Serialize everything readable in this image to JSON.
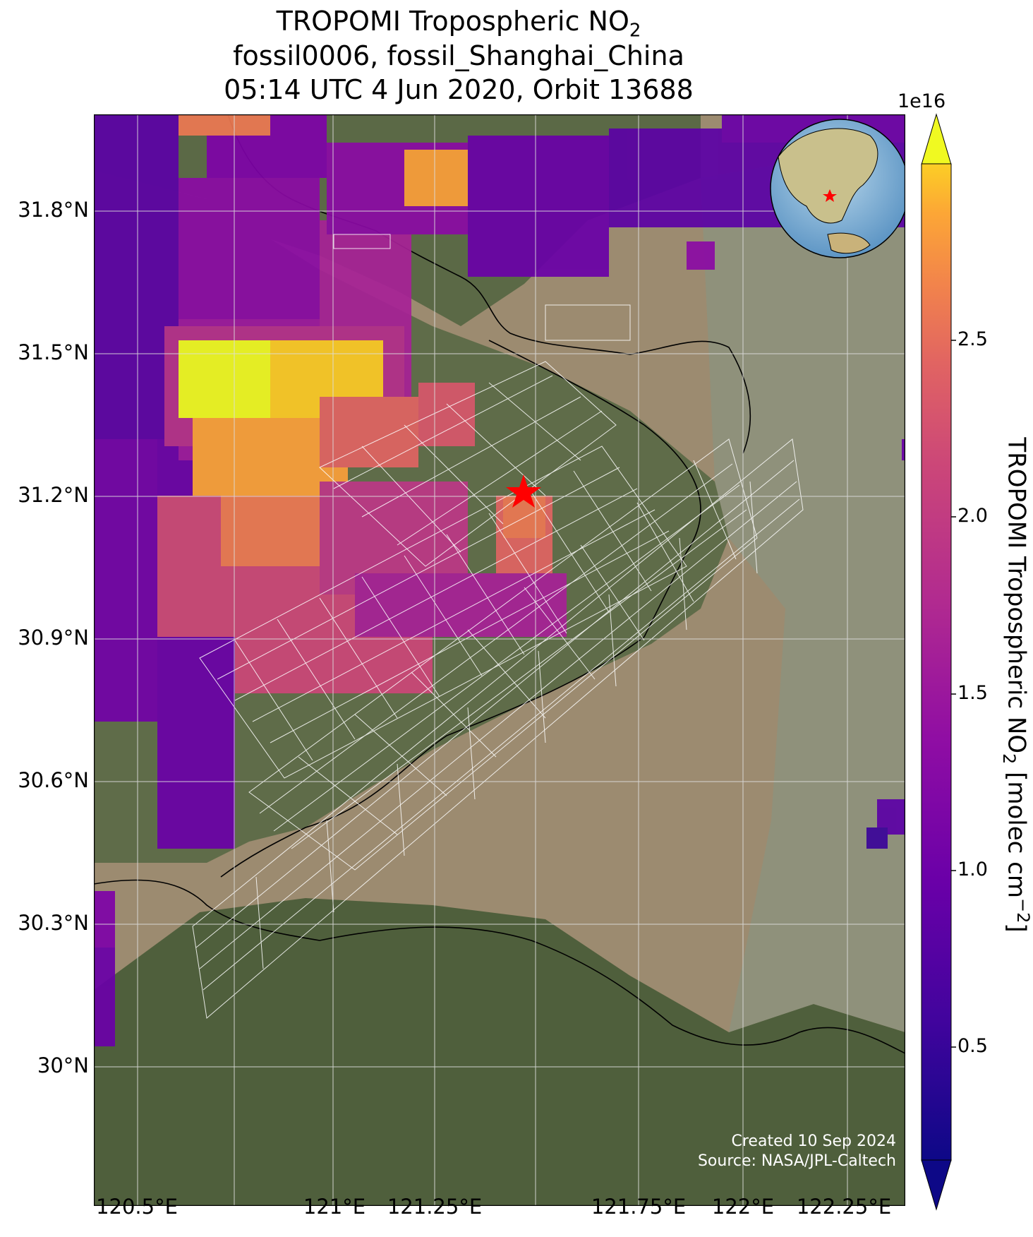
{
  "title": {
    "line1_prefix": "TROPOMI Tropospheric NO",
    "line1_sub": "2",
    "line2": "fossil0006, fossil_Shanghai_China",
    "line3": "05:14 UTC 4 Jun 2020, Orbit 13688"
  },
  "axes": {
    "lat_ticks": [
      "31.8°N",
      "31.5°N",
      "31.2°N",
      "30.9°N",
      "30.6°N",
      "30.3°N",
      "30°N"
    ],
    "lon_ticks": [
      "120.5°E",
      "121°E",
      "121.25°E",
      "121.75°E",
      "122°E",
      "122.25°E"
    ],
    "lat_range": [
      29.76,
      32.0
    ],
    "lon_range": [
      120.5,
      122.5
    ]
  },
  "colorbar": {
    "label_prefix": "TROPOMI Tropospheric NO",
    "label_sub": "2",
    "label_suffix": " [molec cm",
    "label_sup": "−2",
    "label_end": "]",
    "offset_text": "1e16",
    "ticks": [
      "0.5",
      "1.0",
      "1.5",
      "2.0",
      "2.5"
    ],
    "range": [
      0.2,
      2.9
    ],
    "colormap": "plasma",
    "extend": "both"
  },
  "target": {
    "marker": "red star",
    "color": "#ff0000"
  },
  "credit": {
    "line1": "Created 10 Sep 2024",
    "line2": "Source: NASA/JPL-Caltech"
  },
  "colors": {
    "water": "#9c8b70",
    "land": "#5c6a48",
    "coast": "#000000",
    "gridlines": "#dddddd"
  }
}
